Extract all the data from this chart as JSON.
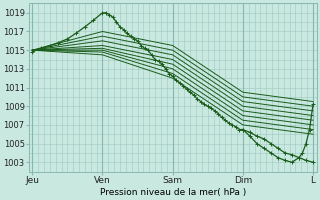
{
  "bg_color": "#c8e8e0",
  "plot_bg_color": "#c8e8e0",
  "grid_color_major": "#a0c8c0",
  "grid_color_minor": "#b8ddd8",
  "line_color": "#1a5c1a",
  "xlabel": "Pression niveau de la mer( hPa )",
  "x_ticks": [
    0,
    1,
    2,
    3,
    4
  ],
  "x_tick_labels": [
    "Jeu",
    "Ven",
    "Sam",
    "Dim",
    "L"
  ],
  "ylim": [
    1002.0,
    1020.0
  ],
  "y_ticks": [
    1003,
    1005,
    1007,
    1009,
    1011,
    1013,
    1015,
    1017,
    1019
  ],
  "xlim": [
    -0.05,
    4.05
  ],
  "series": [
    {
      "x": [
        0.0,
        1.0,
        2.0,
        3.0,
        4.0
      ],
      "y": [
        1015.0,
        1017.0,
        1015.5,
        1010.5,
        1009.5
      ]
    },
    {
      "x": [
        0.0,
        1.0,
        2.0,
        3.0,
        4.0
      ],
      "y": [
        1015.0,
        1016.5,
        1015.0,
        1010.0,
        1009.0
      ]
    },
    {
      "x": [
        0.0,
        1.0,
        2.0,
        3.0,
        4.0
      ],
      "y": [
        1015.0,
        1016.0,
        1014.5,
        1009.5,
        1008.5
      ]
    },
    {
      "x": [
        0.0,
        1.0,
        2.0,
        3.0,
        4.0
      ],
      "y": [
        1015.0,
        1015.5,
        1014.0,
        1009.0,
        1008.0
      ]
    },
    {
      "x": [
        0.0,
        1.0,
        2.0,
        3.0,
        4.0
      ],
      "y": [
        1015.0,
        1015.2,
        1013.5,
        1008.5,
        1007.5
      ]
    },
    {
      "x": [
        0.0,
        1.0,
        2.0,
        3.0,
        4.0
      ],
      "y": [
        1015.0,
        1015.0,
        1013.0,
        1008.0,
        1007.0
      ]
    },
    {
      "x": [
        0.0,
        1.0,
        2.0,
        3.0,
        4.0
      ],
      "y": [
        1015.0,
        1014.8,
        1012.5,
        1007.5,
        1006.5
      ]
    },
    {
      "x": [
        0.0,
        1.0,
        2.0,
        3.0,
        4.0
      ],
      "y": [
        1015.0,
        1014.5,
        1012.0,
        1007.0,
        1006.0
      ]
    }
  ],
  "main_line": {
    "x": [
      0.0,
      0.12,
      0.25,
      0.37,
      0.5,
      0.62,
      0.75,
      0.87,
      1.0,
      1.05,
      1.1,
      1.15,
      1.2,
      1.25,
      1.3,
      1.35,
      1.4,
      1.45,
      1.5,
      1.55,
      1.6,
      1.65,
      1.7,
      1.75,
      1.8,
      1.85,
      1.9,
      1.95,
      2.0,
      2.05,
      2.1,
      2.15,
      2.2,
      2.25,
      2.3,
      2.35,
      2.4,
      2.45,
      2.5,
      2.55,
      2.6,
      2.65,
      2.7,
      2.75,
      2.8,
      2.85,
      2.9,
      2.95,
      3.0,
      3.1,
      3.2,
      3.3,
      3.4,
      3.5,
      3.6,
      3.7,
      3.8,
      3.9,
      4.0
    ],
    "y": [
      1014.8,
      1015.2,
      1015.5,
      1015.8,
      1016.2,
      1016.8,
      1017.5,
      1018.2,
      1019.0,
      1019.0,
      1018.8,
      1018.5,
      1018.0,
      1017.5,
      1017.2,
      1016.8,
      1016.5,
      1016.2,
      1016.0,
      1015.5,
      1015.2,
      1015.0,
      1014.5,
      1014.0,
      1013.8,
      1013.5,
      1013.0,
      1012.5,
      1012.2,
      1011.8,
      1011.5,
      1011.2,
      1010.8,
      1010.5,
      1010.2,
      1009.8,
      1009.5,
      1009.2,
      1009.0,
      1008.8,
      1008.5,
      1008.2,
      1007.8,
      1007.5,
      1007.2,
      1007.0,
      1006.8,
      1006.5,
      1006.5,
      1006.2,
      1005.8,
      1005.5,
      1005.0,
      1004.5,
      1004.0,
      1003.8,
      1003.5,
      1003.2,
      1003.0
    ]
  },
  "bottom_arc": {
    "x": [
      3.0,
      3.1,
      3.2,
      3.3,
      3.4,
      3.5,
      3.6,
      3.7,
      3.8,
      3.85,
      3.9,
      3.95,
      4.0
    ],
    "y": [
      1006.5,
      1005.8,
      1005.0,
      1004.5,
      1004.0,
      1003.5,
      1003.2,
      1003.0,
      1003.5,
      1004.0,
      1005.0,
      1006.5,
      1009.2
    ]
  }
}
